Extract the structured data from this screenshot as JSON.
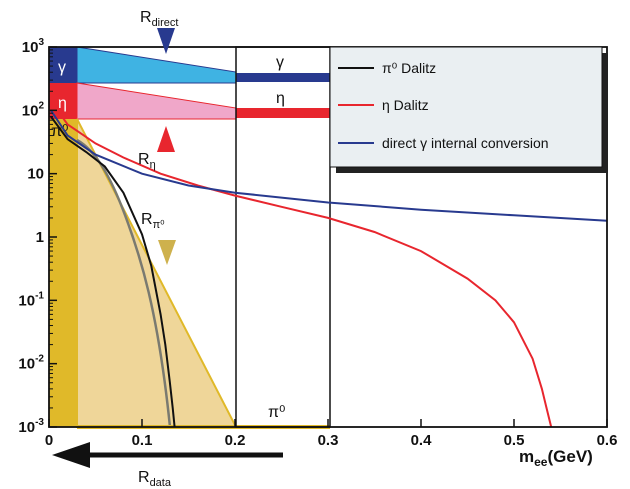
{
  "chart_data": {
    "type": "line",
    "xlabel": "m",
    "xlabel_sub": "ee",
    "xlabel_unit": "(GeV)",
    "xlim": [
      0,
      0.6
    ],
    "ylim": [
      0.001,
      1000
    ],
    "y_scale": "log",
    "grid": false,
    "legend_position": "top-right",
    "x_ticks": [
      "0",
      "0.1",
      "0.2",
      "0.3",
      "0.4",
      "0.5",
      "0.6"
    ],
    "y_ticks": [
      {
        "base": "10",
        "exp": "3"
      },
      {
        "base": "10",
        "exp": "2"
      },
      {
        "base": "10",
        "exp": ""
      },
      {
        "base": "1",
        "exp": ""
      },
      {
        "base": "10",
        "exp": "-1"
      },
      {
        "base": "10",
        "exp": "-2"
      },
      {
        "base": "10",
        "exp": "-3"
      }
    ],
    "series": [
      {
        "name": "π⁰ Dalitz",
        "color": "#111111",
        "x": [
          0.002,
          0.02,
          0.04,
          0.06,
          0.08,
          0.1,
          0.11,
          0.12,
          0.125,
          0.13,
          0.133,
          0.135
        ],
        "y": [
          80,
          35,
          22,
          13,
          5,
          1.1,
          0.35,
          0.06,
          0.02,
          0.005,
          0.002,
          0.001
        ]
      },
      {
        "name": "η Dalitz",
        "color": "#e8262e",
        "x": [
          0.002,
          0.02,
          0.05,
          0.08,
          0.12,
          0.16,
          0.2,
          0.25,
          0.3,
          0.35,
          0.4,
          0.45,
          0.48,
          0.5,
          0.52,
          0.53,
          0.535,
          0.54
        ],
        "y": [
          140,
          60,
          30,
          18,
          10,
          6.5,
          4.5,
          3.0,
          2.0,
          1.2,
          0.6,
          0.22,
          0.1,
          0.045,
          0.012,
          0.004,
          0.002,
          0.001
        ]
      },
      {
        "name": "direct γ internal conversion",
        "color": "#283a8f",
        "x": [
          0.002,
          0.02,
          0.05,
          0.1,
          0.15,
          0.2,
          0.3,
          0.4,
          0.5,
          0.6
        ],
        "y": [
          100,
          40,
          20,
          10,
          6.5,
          5.0,
          3.5,
          2.7,
          2.2,
          1.8
        ]
      }
    ],
    "bands": [
      {
        "label": "γ",
        "y_low": 200,
        "y_high": 1000,
        "color": "#283a8f"
      },
      {
        "label": "η",
        "y_low": 60,
        "y_high": 200,
        "color": "#e8262e"
      },
      {
        "label": "π0",
        "y_low": 0.001,
        "y_high": 60,
        "color": "#e0b929"
      }
    ],
    "annotations": {
      "r_direct": {
        "main": "R",
        "sub": "direct"
      },
      "r_eta": {
        "main": "R",
        "sub": "η"
      },
      "r_pi0": {
        "main": "R",
        "sub": "π⁰"
      },
      "r_data": {
        "main": "R",
        "sub": "data"
      },
      "gamma_box": "γ",
      "eta_box": "η",
      "pi0_box": "π⁰",
      "pi0_axis": "π⁰"
    },
    "colors": {
      "gamma_fill": "#3fb3e3",
      "eta_fill": "#f0a7c9",
      "pi0_fill": "#eccf87"
    }
  }
}
